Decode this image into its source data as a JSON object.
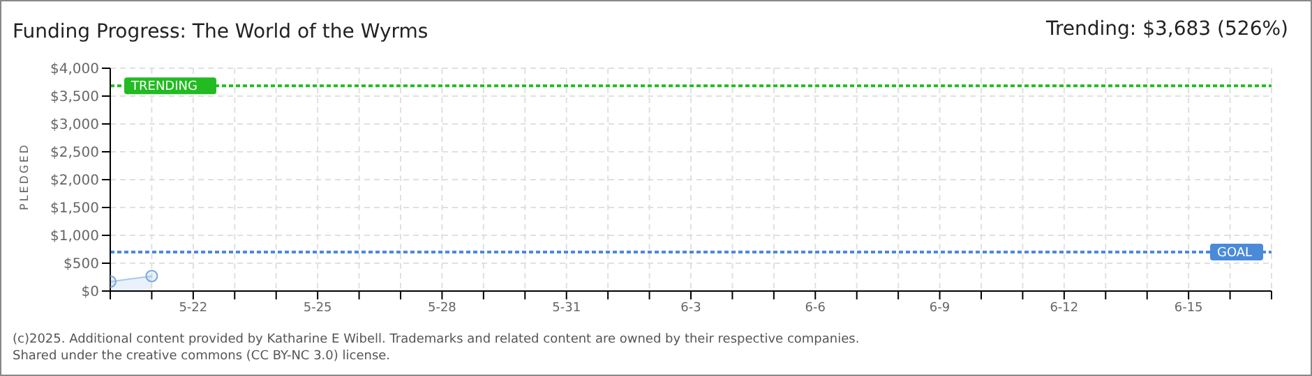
{
  "chart_data": {
    "type": "area",
    "title": "Funding Progress: The World of the Wyrms",
    "subtitle": "Trending: $3,683 (526%)",
    "ylabel": "PLEDGED",
    "x": [
      "--05-20",
      "--05-21"
    ],
    "series": [
      {
        "color": "#a8c8ec",
        "values": [
          170,
          270
        ]
      }
    ],
    "marker": "circle",
    "grid": true,
    "legend": false,
    "xlim": [
      "--05-20",
      "--06-17"
    ],
    "xticks": [
      {
        "value": "--05-20",
        "label": null
      },
      {
        "value": "--05-21",
        "label": null
      },
      {
        "value": "--05-22",
        "label": "5-22"
      },
      {
        "value": "--05-23",
        "label": null
      },
      {
        "value": "--05-24",
        "label": null
      },
      {
        "value": "--05-25",
        "label": "5-25"
      },
      {
        "value": "--05-26",
        "label": null
      },
      {
        "value": "--05-27",
        "label": null
      },
      {
        "value": "--05-28",
        "label": "5-28"
      },
      {
        "value": "--05-29",
        "label": null
      },
      {
        "value": "--05-30",
        "label": null
      },
      {
        "value": "--05-31",
        "label": "5-31"
      },
      {
        "value": "--06-01",
        "label": null
      },
      {
        "value": "--06-02",
        "label": null
      },
      {
        "value": "--06-03",
        "label": "6-3"
      },
      {
        "value": "--06-04",
        "label": null
      },
      {
        "value": "--06-05",
        "label": null
      },
      {
        "value": "--06-06",
        "label": "6-6"
      },
      {
        "value": "--06-07",
        "label": null
      },
      {
        "value": "--06-08",
        "label": null
      },
      {
        "value": "--06-09",
        "label": "6-9"
      },
      {
        "value": "--06-10",
        "label": null
      },
      {
        "value": "--06-11",
        "label": null
      },
      {
        "value": "--06-12",
        "label": "6-12"
      },
      {
        "value": "--06-13",
        "label": null
      },
      {
        "value": "--06-14",
        "label": null
      },
      {
        "value": "--06-15",
        "label": "6-15"
      },
      {
        "value": "--06-16",
        "label": null
      },
      {
        "value": "--06-17",
        "label": null
      }
    ],
    "ylim": [
      0,
      4000
    ],
    "yticks": [
      {
        "value": 0,
        "label": "$0"
      },
      {
        "value": 500,
        "label": "$500"
      },
      {
        "value": 1000,
        "label": "$1,000"
      },
      {
        "value": 1500,
        "label": "$1,500"
      },
      {
        "value": 2000,
        "label": "$2,000"
      },
      {
        "value": 2500,
        "label": "$2,500"
      },
      {
        "value": 3000,
        "label": "$3,000"
      },
      {
        "value": 3500,
        "label": "$3,500"
      },
      {
        "value": 4000,
        "label": "$4,000"
      }
    ],
    "ref_lines": [
      {
        "axis": "y",
        "value": 3683,
        "label": "TRENDING",
        "color": "#22bb22",
        "line_style": "dotted"
      },
      {
        "axis": "y",
        "value": 700,
        "label": "GOAL",
        "color": "#4a8ad8",
        "line_style": "dotted"
      }
    ],
    "annotations": [
      "(c)2025. Additional content provided by Katharine E Wibell. Trademarks and related content are owned by their respective companies.",
      "Shared under the creative commons (CC BY-NC 3.0) license."
    ]
  }
}
